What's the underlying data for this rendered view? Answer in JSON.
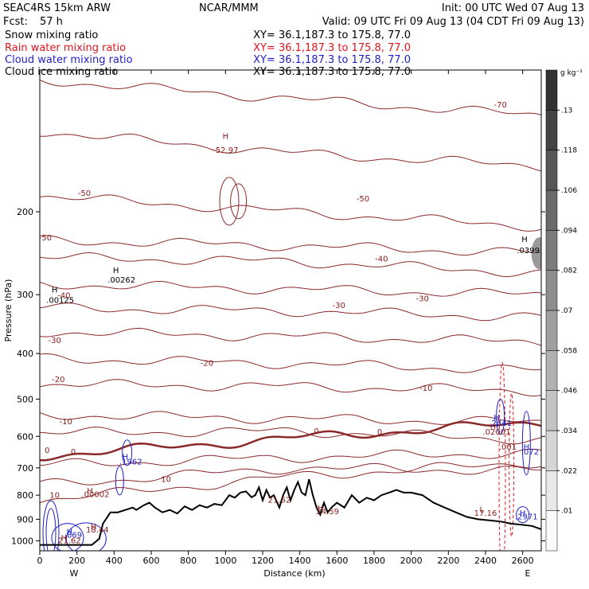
{
  "header": {
    "title": "SEAC4RS 15km ARW",
    "org": "NCAR/MMM",
    "init": "Init: 00 UTC Wed 07 Aug 13",
    "fcst_label": "Fcst:",
    "fcst_value": "57 h",
    "valid": "Valid: 09 UTC Fri 09 Aug 13 (04 CDT Fri 09 Aug 13)"
  },
  "fields": [
    {
      "name": "Snow mixing ratio",
      "xy": "XY=  36.1,187.3 to 175.8, 77.0",
      "color": "#000000"
    },
    {
      "name": "Rain water mixing ratio",
      "xy": "XY=  36.1,187.3 to 175.8, 77.0",
      "color": "#e0141e"
    },
    {
      "name": "Cloud water mixing ratio",
      "xy": "XY=  36.1,187.3 to 175.8, 77.0",
      "color": "#1e1ec8"
    },
    {
      "name": "Cloud ice mixing ratio",
      "xy": "XY=  36.1,187.3 to 175.8, 77.0",
      "color": "#000000"
    }
  ],
  "chart_data": {
    "type": "contour cross-section",
    "xlabel": "Distance (km)",
    "ylabel": "Pressure (hPa)",
    "xlim": [
      0,
      2700
    ],
    "ylim": [
      1050,
      100
    ],
    "y_log": true,
    "x_ticks": [
      "0",
      "200",
      "400",
      "600",
      "800",
      "1000",
      "1200",
      "1400",
      "1600",
      "1800",
      "2000",
      "2200",
      "2400",
      "2600"
    ],
    "y_ticks": [
      "200",
      "300",
      "400",
      "500",
      "600",
      "700",
      "800",
      "900",
      "1000"
    ],
    "x_end_labels": {
      "left": "W",
      "right": "E"
    },
    "colorbar": {
      "unit": "g kg⁻¹",
      "labels": [
        ".01",
        ".022",
        ".034",
        ".046",
        ".058",
        ".07",
        ".082",
        ".094",
        ".106",
        ".118",
        ".13"
      ]
    },
    "temperature_contours": [
      {
        "value": -70,
        "p_left": 105,
        "p_mid": 115,
        "p_right": 125
      },
      {
        "value": -60,
        "p_left": 135,
        "p_mid": 150,
        "p_right": 160
      },
      {
        "value": -50,
        "p_left": 185,
        "p_mid": 200,
        "p_right": 215
      },
      {
        "value": -40,
        "p_left": 250,
        "p_mid": 255,
        "p_right": 270
      },
      {
        "value": -30,
        "p_left": 320,
        "p_mid": 325,
        "p_right": 335
      },
      {
        "value": -20,
        "p_left": 410,
        "p_mid": 420,
        "p_right": 435
      },
      {
        "value": -10,
        "p_left": 540,
        "p_mid": 550,
        "p_right": 560
      },
      {
        "value": 0,
        "p_left": 660,
        "p_mid": 605,
        "p_right": 560
      },
      {
        "value": 10,
        "p_left": 820,
        "p_mid": 730,
        "p_right": 680
      }
    ],
    "extra_isotherms": [
      {
        "p_left": 230,
        "p_mid": 236,
        "p_right": 245
      },
      {
        "p_left": 285,
        "p_mid": 292,
        "p_right": 300
      },
      {
        "p_left": 360,
        "p_mid": 368,
        "p_right": 378
      },
      {
        "p_left": 465,
        "p_mid": 470,
        "p_right": 480
      },
      {
        "p_left": 590,
        "p_mid": 585,
        "p_right": 610
      },
      {
        "p_left": 690,
        "p_mid": 665,
        "p_right": 650
      },
      {
        "p_left": 760,
        "p_mid": 700,
        "p_right": 710
      }
    ],
    "terrain": [
      [
        0,
        1020
      ],
      [
        280,
        1020
      ],
      [
        320,
        990
      ],
      [
        340,
        920
      ],
      [
        380,
        870
      ],
      [
        420,
        870
      ],
      [
        460,
        860
      ],
      [
        500,
        850
      ],
      [
        520,
        860
      ],
      [
        560,
        840
      ],
      [
        590,
        830
      ],
      [
        620,
        850
      ],
      [
        660,
        870
      ],
      [
        700,
        860
      ],
      [
        740,
        875
      ],
      [
        780,
        845
      ],
      [
        820,
        860
      ],
      [
        860,
        840
      ],
      [
        900,
        850
      ],
      [
        940,
        835
      ],
      [
        980,
        840
      ],
      [
        1020,
        800
      ],
      [
        1050,
        810
      ],
      [
        1080,
        790
      ],
      [
        1110,
        785
      ],
      [
        1140,
        808
      ],
      [
        1160,
        800
      ],
      [
        1180,
        770
      ],
      [
        1200,
        820
      ],
      [
        1220,
        780
      ],
      [
        1240,
        810
      ],
      [
        1260,
        800
      ],
      [
        1290,
        850
      ],
      [
        1310,
        800
      ],
      [
        1330,
        770
      ],
      [
        1350,
        820
      ],
      [
        1370,
        780
      ],
      [
        1390,
        750
      ],
      [
        1410,
        790
      ],
      [
        1430,
        800
      ],
      [
        1450,
        740
      ],
      [
        1470,
        800
      ],
      [
        1490,
        850
      ],
      [
        1510,
        880
      ],
      [
        1530,
        830
      ],
      [
        1550,
        870
      ],
      [
        1570,
        850
      ],
      [
        1600,
        830
      ],
      [
        1640,
        850
      ],
      [
        1680,
        800
      ],
      [
        1720,
        830
      ],
      [
        1760,
        810
      ],
      [
        1800,
        820
      ],
      [
        1840,
        800
      ],
      [
        1880,
        790
      ],
      [
        1920,
        780
      ],
      [
        1960,
        790
      ],
      [
        2000,
        790
      ],
      [
        2060,
        800
      ],
      [
        2120,
        830
      ],
      [
        2180,
        850
      ],
      [
        2240,
        870
      ],
      [
        2300,
        890
      ],
      [
        2360,
        900
      ],
      [
        2420,
        905
      ],
      [
        2480,
        910
      ],
      [
        2540,
        920
      ],
      [
        2600,
        925
      ],
      [
        2650,
        930
      ],
      [
        2700,
        945
      ]
    ],
    "labels": [
      {
        "text": "-70",
        "x": 2480,
        "p": 120,
        "color": "brown"
      },
      {
        "text": "-50",
        "x": 240,
        "p": 185,
        "color": "brown"
      },
      {
        "text": "-50",
        "x": 30,
        "p": 230,
        "color": "brown"
      },
      {
        "text": "-50",
        "x": 1740,
        "p": 190,
        "color": "brown"
      },
      {
        "text": "-40",
        "x": 1840,
        "p": 255,
        "color": "brown"
      },
      {
        "text": "-40",
        "x": 130,
        "p": 305,
        "color": "brown"
      },
      {
        "text": "-30",
        "x": 1610,
        "p": 320,
        "color": "brown"
      },
      {
        "text": "-30",
        "x": 2060,
        "p": 310,
        "color": "brown"
      },
      {
        "text": "-30",
        "x": 80,
        "p": 380,
        "color": "brown"
      },
      {
        "text": "-20",
        "x": 900,
        "p": 425,
        "color": "brown"
      },
      {
        "text": "-20",
        "x": 100,
        "p": 460,
        "color": "brown"
      },
      {
        "text": "-10",
        "x": 2080,
        "p": 480,
        "color": "brown"
      },
      {
        "text": "-10",
        "x": 140,
        "p": 565,
        "color": "brown"
      },
      {
        "text": "0",
        "x": 1490,
        "p": 592,
        "color": "brown"
      },
      {
        "text": "0",
        "x": 1830,
        "p": 595,
        "color": "brown"
      },
      {
        "text": "0",
        "x": 180,
        "p": 655,
        "color": "brown"
      },
      {
        "text": "0",
        "x": 40,
        "p": 650,
        "color": "brown"
      },
      {
        "text": "10",
        "x": 680,
        "p": 750,
        "color": "brown"
      },
      {
        "text": "10",
        "x": 80,
        "p": 810,
        "color": "brown"
      },
      {
        "text": "H",
        "x": 1000,
        "p": 140,
        "color": "brown"
      },
      {
        "text": "-52.97",
        "x": 1000,
        "p": 150,
        "color": "brown"
      },
      {
        "text": "H",
        "x": 410,
        "p": 270,
        "color": "black"
      },
      {
        "text": ".00262",
        "x": 440,
        "p": 283,
        "color": "black"
      },
      {
        "text": "H",
        "x": 80,
        "p": 297,
        "color": "black"
      },
      {
        "text": ".00125",
        "x": 110,
        "p": 312,
        "color": "black"
      },
      {
        "text": "H",
        "x": 2610,
        "p": 232,
        "color": "black"
      },
      {
        "text": ".0399",
        "x": 2630,
        "p": 245,
        "color": "black"
      },
      {
        "text": "H",
        "x": 2460,
        "p": 555,
        "color": "blue"
      },
      {
        "text": ".2841",
        "x": 2480,
        "p": 570,
        "color": "blue"
      },
      {
        "text": "H",
        "x": 2440,
        "p": 580,
        "color": "brown"
      },
      {
        "text": ".02001",
        "x": 2460,
        "p": 595,
        "color": "brown"
      },
      {
        "text": ".001",
        "x": 2520,
        "p": 640,
        "color": "brown"
      },
      {
        "text": "H",
        "x": 2620,
        "p": 640,
        "color": "blue"
      },
      {
        "text": ".072",
        "x": 2640,
        "p": 655,
        "color": "blue"
      },
      {
        "text": "H",
        "x": 460,
        "p": 672,
        "color": "blue"
      },
      {
        "text": ".1962",
        "x": 490,
        "p": 688,
        "color": "blue"
      },
      {
        "text": "H",
        "x": 270,
        "p": 793,
        "color": "brown"
      },
      {
        "text": ".00002",
        "x": 300,
        "p": 808,
        "color": "brown"
      },
      {
        "text": "21.52",
        "x": 1290,
        "p": 830,
        "color": "brown"
      },
      {
        "text": "H",
        "x": 1510,
        "p": 863,
        "color": "brown"
      },
      {
        "text": "24.59",
        "x": 1550,
        "p": 877,
        "color": "brown"
      },
      {
        "text": "L",
        "x": 2380,
        "p": 870,
        "color": "brown"
      },
      {
        "text": "17.16",
        "x": 2400,
        "p": 885,
        "color": "brown"
      },
      {
        "text": "H",
        "x": 2600,
        "p": 885,
        "color": "blue"
      },
      {
        "text": ".2971",
        "x": 2620,
        "p": 900,
        "color": "blue"
      },
      {
        "text": "H",
        "x": 290,
        "p": 945,
        "color": "brown"
      },
      {
        "text": "18.44",
        "x": 310,
        "p": 960,
        "color": "brown"
      },
      {
        "text": "H",
        "x": 160,
        "p": 970,
        "color": "blue"
      },
      {
        "text": ".869",
        "x": 180,
        "p": 985,
        "color": "blue"
      },
      {
        "text": "H",
        "x": 130,
        "p": 998,
        "color": "brown"
      },
      {
        "text": "21.62",
        "x": 160,
        "p": 1012,
        "color": "brown"
      }
    ]
  }
}
